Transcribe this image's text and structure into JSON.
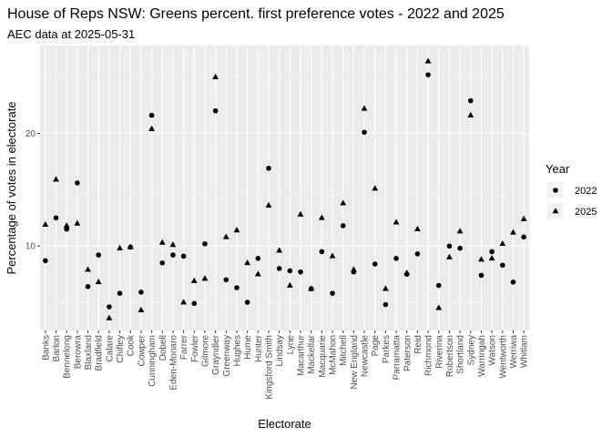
{
  "chart_data": {
    "type": "scatter",
    "title": "House of Reps NSW: Greens percent. first preference votes - 2022 and 2025",
    "subtitle": "AEC data at 2025-05-31",
    "xlabel": "Electorate",
    "ylabel": "Percentage of votes in electorate",
    "ylim": [
      2.5,
      27.8
    ],
    "yticks": [
      10,
      20
    ],
    "grid": true,
    "legend": {
      "title": "Year",
      "position": "right"
    },
    "categories": [
      "Banks",
      "Barton",
      "Bennelong",
      "Berowra",
      "Blaxland",
      "Bradfield",
      "Calare",
      "Chifley",
      "Cook",
      "Cowper",
      "Cunningham",
      "Dobell",
      "Eden-Monaro",
      "Farrer",
      "Fowler",
      "Gilmore",
      "Grayndler",
      "Greenway",
      "Hughes",
      "Hume",
      "Hunter",
      "Kingsford Smith",
      "Lindsay",
      "Lyne",
      "Macarthur",
      "Mackellar",
      "Macquarie",
      "McMahon",
      "Mitchell",
      "New England",
      "Newcastle",
      "Page",
      "Parkes",
      "Parramatta",
      "Paterson",
      "Reid",
      "Richmond",
      "Riverina",
      "Robertson",
      "Shortland",
      "Sydney",
      "Warringah",
      "Watson",
      "Wentworth",
      "Werriwa",
      "Whitlam"
    ],
    "series": [
      {
        "name": "2022",
        "shape": "circle",
        "values": [
          8.7,
          12.5,
          11.5,
          15.6,
          6.4,
          9.2,
          4.6,
          5.8,
          9.9,
          5.9,
          21.6,
          8.5,
          9.2,
          9.1,
          4.9,
          10.2,
          22.0,
          7.0,
          6.3,
          5.0,
          8.9,
          16.9,
          8.0,
          7.8,
          7.7,
          6.2,
          9.5,
          5.8,
          11.8,
          7.7,
          20.1,
          8.4,
          4.8,
          8.9,
          7.5,
          9.3,
          25.2,
          6.5,
          10.0,
          9.8,
          22.9,
          7.4,
          9.5,
          8.3,
          6.8,
          10.8
        ]
      },
      {
        "name": "2025",
        "shape": "triangle",
        "values": [
          11.9,
          15.9,
          11.8,
          12.0,
          7.9,
          6.8,
          3.6,
          9.8,
          9.9,
          4.3,
          20.4,
          10.3,
          10.1,
          5.0,
          6.9,
          7.1,
          25.0,
          10.8,
          11.4,
          8.5,
          7.5,
          13.6,
          9.6,
          6.5,
          12.8,
          6.2,
          12.5,
          9.1,
          13.8,
          7.9,
          22.2,
          15.1,
          6.2,
          12.1,
          7.6,
          11.5,
          26.4,
          4.5,
          9.0,
          11.3,
          21.6,
          8.8,
          8.9,
          10.2,
          11.2,
          12.4
        ]
      }
    ]
  }
}
